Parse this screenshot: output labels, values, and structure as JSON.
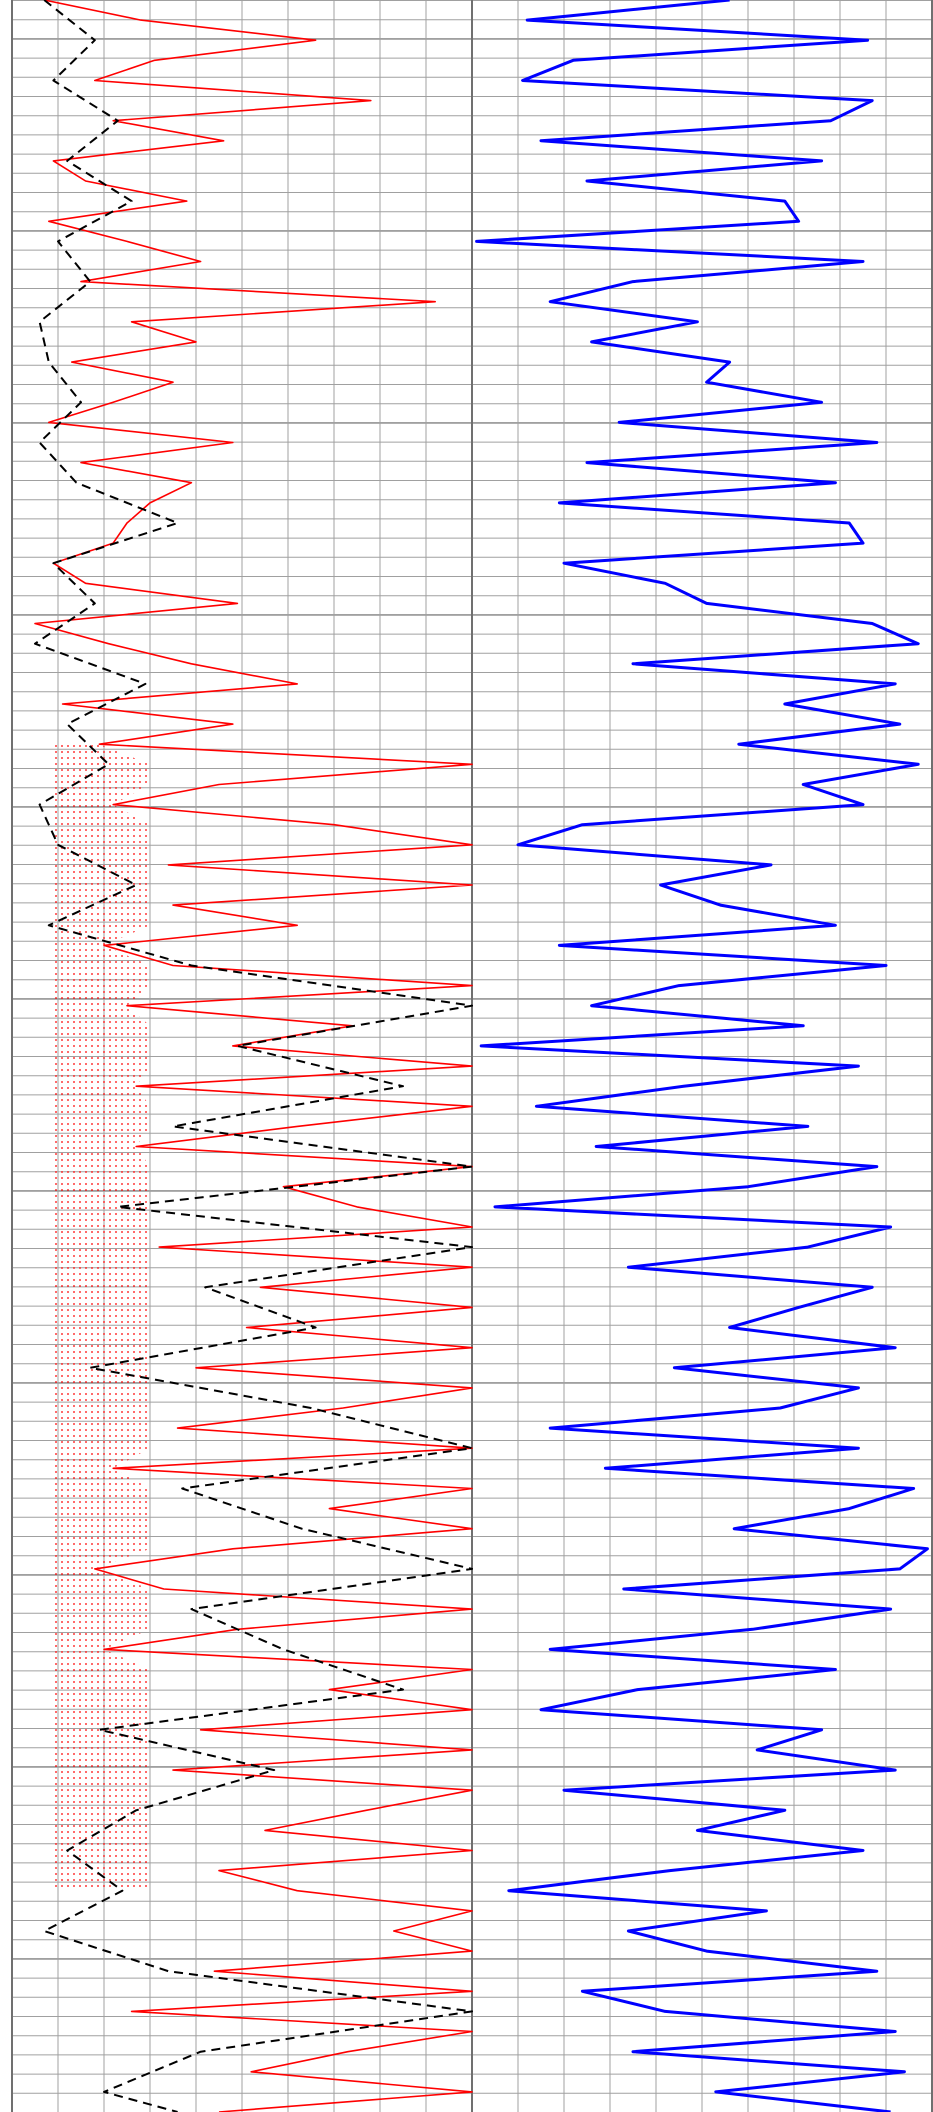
{
  "chart_data": {
    "type": "line",
    "title": "",
    "xlabel": "",
    "ylabel": "",
    "grid": true,
    "legend": "none",
    "tracks": [
      {
        "name": "",
        "xlim": [
          0,
          10
        ],
        "series": [
          {
            "style": "solid",
            "color": "#ff0000",
            "y": [
              0,
              20,
              40,
              60,
              80,
              100,
              120,
              140,
              160,
              180,
              200,
              220,
              240,
              260,
              280,
              300,
              320,
              340,
              360,
              380,
              400,
              420,
              440,
              460,
              480,
              500,
              520,
              540,
              560,
              580,
              600,
              620,
              640,
              660,
              680,
              700,
              720,
              740,
              760,
              780,
              800,
              820,
              840,
              860,
              880,
              900,
              920,
              940,
              960,
              980,
              1000,
              1020,
              1040,
              1060,
              1080,
              1100,
              1120,
              1140,
              1160,
              1180,
              1200,
              1220,
              1240,
              1260,
              1280,
              1300,
              1320,
              1340,
              1360,
              1380,
              1400,
              1420,
              1440,
              1460,
              1480,
              1500,
              1520,
              1540,
              1560,
              1580,
              1600,
              1620,
              1640,
              1660,
              1680,
              1700,
              1720,
              1740,
              1760,
              1780,
              1800,
              1820,
              1840,
              1860,
              1880,
              1900,
              1920,
              1940,
              1960,
              1980,
              2000,
              2020,
              2040,
              2060,
              2080,
              2100
            ],
            "x": [
              0.7,
              2.8,
              6.6,
              3.1,
              1.8,
              7.8,
              2.2,
              4.6,
              0.9,
              1.6,
              3.8,
              0.8,
              2.5,
              4.1,
              1.5,
              9.2,
              2.6,
              4.0,
              1.3,
              3.5,
              2.2,
              0.8,
              4.8,
              1.5,
              3.9,
              3.0,
              2.5,
              2.2,
              0.9,
              1.6,
              4.9,
              0.5,
              2.1,
              3.9,
              6.2,
              1.1,
              4.8,
              1.9,
              10,
              4.5,
              2.2,
              7.0,
              10,
              3.4,
              10,
              3.5,
              6.2,
              2.0,
              3.5,
              10,
              2.5,
              7.4,
              4.8,
              10,
              2.7,
              10,
              6.2,
              2.7,
              10,
              5.9,
              7.5,
              10,
              3.2,
              10,
              5.4,
              10,
              5.1,
              10,
              4.0,
              10,
              7.2,
              3.6,
              10,
              2.2,
              10,
              6.9,
              10,
              4.8,
              1.8,
              3.3,
              10,
              4.9,
              2.0,
              10,
              6.9,
              10,
              4.1,
              10,
              3.5,
              10,
              7.7,
              5.5,
              10,
              4.5,
              6.2,
              10,
              8.3,
              10,
              4.4,
              10,
              2.6,
              10,
              7.3,
              5.2,
              10,
              4.5
            ]
          },
          {
            "style": "dashed",
            "color": "#000000",
            "y": [
              0,
              40,
              80,
              120,
              160,
              200,
              240,
              280,
              320,
              360,
              400,
              440,
              480,
              520,
              560,
              600,
              640,
              680,
              720,
              760,
              800,
              840,
              880,
              920,
              960,
              1000,
              1040,
              1080,
              1120,
              1160,
              1200,
              1240,
              1280,
              1320,
              1360,
              1400,
              1440,
              1480,
              1520,
              1560,
              1600,
              1640,
              1680,
              1720,
              1760,
              1800,
              1840,
              1880,
              1920,
              1960,
              2000,
              2040,
              2080,
              2100
            ],
            "x": [
              0.7,
              1.8,
              0.9,
              2.3,
              1.2,
              2.6,
              1.0,
              1.7,
              0.6,
              0.8,
              1.5,
              0.6,
              1.4,
              3.6,
              0.9,
              1.8,
              0.5,
              2.9,
              1.2,
              2.1,
              0.6,
              1.0,
              2.7,
              0.8,
              3.9,
              10,
              4.9,
              8.5,
              3.5,
              10,
              2.3,
              10,
              4.2,
              6.6,
              1.7,
              6.5,
              10,
              3.7,
              6.3,
              10,
              3.9,
              5.9,
              8.5,
              1.9,
              5.7,
              2.7,
              1.2,
              2.4,
              0.7,
              3.4,
              10,
              4.1,
              2.0,
              3.6
            ]
          }
        ]
      },
      {
        "name": "",
        "xlim": [
          0,
          10
        ],
        "series": [
          {
            "style": "solid",
            "color": "#0000ff",
            "y": [
              0,
              20,
              40,
              60,
              80,
              100,
              120,
              140,
              160,
              180,
              200,
              220,
              240,
              260,
              280,
              300,
              320,
              340,
              360,
              380,
              400,
              420,
              440,
              460,
              480,
              500,
              520,
              540,
              560,
              580,
              600,
              620,
              640,
              660,
              680,
              700,
              720,
              740,
              760,
              780,
              800,
              820,
              840,
              860,
              880,
              900,
              920,
              940,
              960,
              980,
              1000,
              1020,
              1040,
              1060,
              1080,
              1100,
              1120,
              1140,
              1160,
              1180,
              1200,
              1220,
              1240,
              1260,
              1280,
              1300,
              1320,
              1340,
              1360,
              1380,
              1400,
              1420,
              1440,
              1460,
              1480,
              1500,
              1520,
              1540,
              1560,
              1580,
              1600,
              1620,
              1640,
              1660,
              1680,
              1700,
              1720,
              1740,
              1760,
              1780,
              1800,
              1820,
              1840,
              1860,
              1880,
              1900,
              1920,
              1940,
              1960,
              1980,
              2000,
              2020,
              2040,
              2060,
              2080,
              2100
            ],
            "x": [
              5.6,
              1.2,
              8.6,
              2.2,
              1.1,
              8.7,
              7.8,
              1.5,
              7.6,
              2.5,
              6.8,
              7.1,
              0.1,
              8.5,
              3.5,
              1.7,
              4.9,
              2.6,
              5.6,
              5.1,
              7.6,
              3.2,
              8.8,
              2.5,
              7.9,
              1.9,
              8.2,
              8.5,
              2.0,
              4.2,
              5.1,
              8.7,
              9.7,
              3.5,
              9.2,
              6.8,
              9.3,
              5.8,
              9.7,
              7.2,
              8.5,
              2.4,
              1.0,
              6.5,
              4.1,
              5.4,
              7.9,
              1.9,
              9.0,
              4.5,
              2.6,
              7.2,
              0.2,
              8.4,
              4.6,
              1.4,
              7.3,
              2.7,
              8.8,
              6.0,
              0.5,
              9.1,
              7.3,
              3.4,
              8.7,
              7.1,
              5.6,
              9.2,
              4.4,
              8.4,
              6.7,
              1.7,
              8.4,
              2.9,
              9.6,
              8.2,
              5.7,
              9.9,
              9.3,
              3.3,
              9.1,
              6.1,
              1.7,
              7.9,
              3.6,
              1.5,
              7.6,
              6.2,
              9.2,
              2.0,
              6.8,
              4.9,
              8.5,
              4.3,
              0.8,
              6.4,
              3.4,
              5.1,
              8.8,
              2.4,
              4.2,
              9.2,
              3.5,
              9.4,
              5.3,
              9.1
            ]
          }
        ]
      }
    ],
    "depth_range": [
      0,
      2100
    ],
    "colors": {
      "background": "#ffffff",
      "grid": "#a0a0a0",
      "grid_major": "#808080",
      "track_divider": "#707070",
      "dotted_fill": "#ff0000"
    }
  }
}
